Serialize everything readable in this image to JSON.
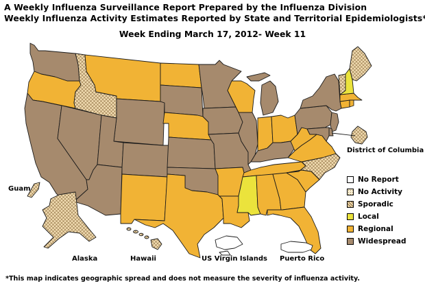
{
  "header": {
    "title_line1": "A Weekly Influenza Surveillance Report Prepared by the Influenza Division",
    "title_line2": "Weekly Influenza Activity Estimates Reported by State and Territorial Epidemiologists*",
    "week": "Week Ending March 17, 2012- Week 11"
  },
  "colors": {
    "widespread": "#a68a6d",
    "regional": "#f1b335",
    "local": "#ebe33c",
    "sporadic": "#f0dbb0",
    "no_activity": "#f6ecd1",
    "no_report": "#ffffff",
    "border": "#1a1a1a",
    "water": "#ffffff"
  },
  "legend": [
    {
      "key": "no_report",
      "label": "No Report"
    },
    {
      "key": "no_activity",
      "label": "No Activity"
    },
    {
      "key": "sporadic",
      "label": "Sporadic"
    },
    {
      "key": "local",
      "label": "Local"
    },
    {
      "key": "regional",
      "label": "Regional"
    },
    {
      "key": "widespread",
      "label": "Widespread"
    }
  ],
  "labels": {
    "dc": "District of Columbia",
    "guam": "Guam",
    "alaska": "Alaska",
    "hawaii": "Hawaii",
    "usvi": "US Virgin Islands",
    "pr": "Puerto Rico"
  },
  "regions": [
    {
      "id": "WA",
      "level": "widespread"
    },
    {
      "id": "OR",
      "level": "regional"
    },
    {
      "id": "CA",
      "level": "widespread"
    },
    {
      "id": "NV",
      "level": "widespread"
    },
    {
      "id": "ID",
      "level": "sporadic"
    },
    {
      "id": "MT",
      "level": "regional"
    },
    {
      "id": "WY",
      "level": "widespread"
    },
    {
      "id": "UT",
      "level": "widespread"
    },
    {
      "id": "AZ",
      "level": "widespread"
    },
    {
      "id": "CO",
      "level": "widespread"
    },
    {
      "id": "NM",
      "level": "regional"
    },
    {
      "id": "ND",
      "level": "regional"
    },
    {
      "id": "SD",
      "level": "widespread"
    },
    {
      "id": "NE",
      "level": "regional"
    },
    {
      "id": "KS",
      "level": "widespread"
    },
    {
      "id": "OK",
      "level": "widespread"
    },
    {
      "id": "TX",
      "level": "regional"
    },
    {
      "id": "MN",
      "level": "widespread"
    },
    {
      "id": "IA",
      "level": "widespread"
    },
    {
      "id": "MO",
      "level": "widespread"
    },
    {
      "id": "AR",
      "level": "regional"
    },
    {
      "id": "LA",
      "level": "regional"
    },
    {
      "id": "WI",
      "level": "regional"
    },
    {
      "id": "IL",
      "level": "widespread"
    },
    {
      "id": "MI",
      "level": "widespread"
    },
    {
      "id": "IN",
      "level": "regional"
    },
    {
      "id": "OH",
      "level": "regional"
    },
    {
      "id": "KY",
      "level": "widespread"
    },
    {
      "id": "TN",
      "level": "regional"
    },
    {
      "id": "MS",
      "level": "local"
    },
    {
      "id": "AL",
      "level": "regional"
    },
    {
      "id": "GA",
      "level": "regional"
    },
    {
      "id": "FL",
      "level": "regional"
    },
    {
      "id": "SC",
      "level": "regional"
    },
    {
      "id": "NC",
      "level": "sporadic"
    },
    {
      "id": "VA",
      "level": "regional"
    },
    {
      "id": "WV",
      "level": "regional"
    },
    {
      "id": "PA",
      "level": "widespread"
    },
    {
      "id": "NY",
      "level": "widespread"
    },
    {
      "id": "NJ",
      "level": "widespread"
    },
    {
      "id": "DE",
      "level": "widespread"
    },
    {
      "id": "MD",
      "level": "widespread"
    },
    {
      "id": "CT",
      "level": "regional"
    },
    {
      "id": "RI",
      "level": "regional"
    },
    {
      "id": "MA",
      "level": "regional"
    },
    {
      "id": "VT",
      "level": "sporadic"
    },
    {
      "id": "NH",
      "level": "local"
    },
    {
      "id": "ME",
      "level": "sporadic"
    },
    {
      "id": "DC",
      "level": "sporadic"
    },
    {
      "id": "AK",
      "level": "sporadic"
    },
    {
      "id": "HI",
      "level": "sporadic"
    },
    {
      "id": "GU",
      "level": "sporadic"
    },
    {
      "id": "VI",
      "level": "no_report"
    },
    {
      "id": "PR",
      "level": "no_report"
    }
  ],
  "footnote": "*This map indicates geographic spread and does not measure the severity of influenza activity."
}
